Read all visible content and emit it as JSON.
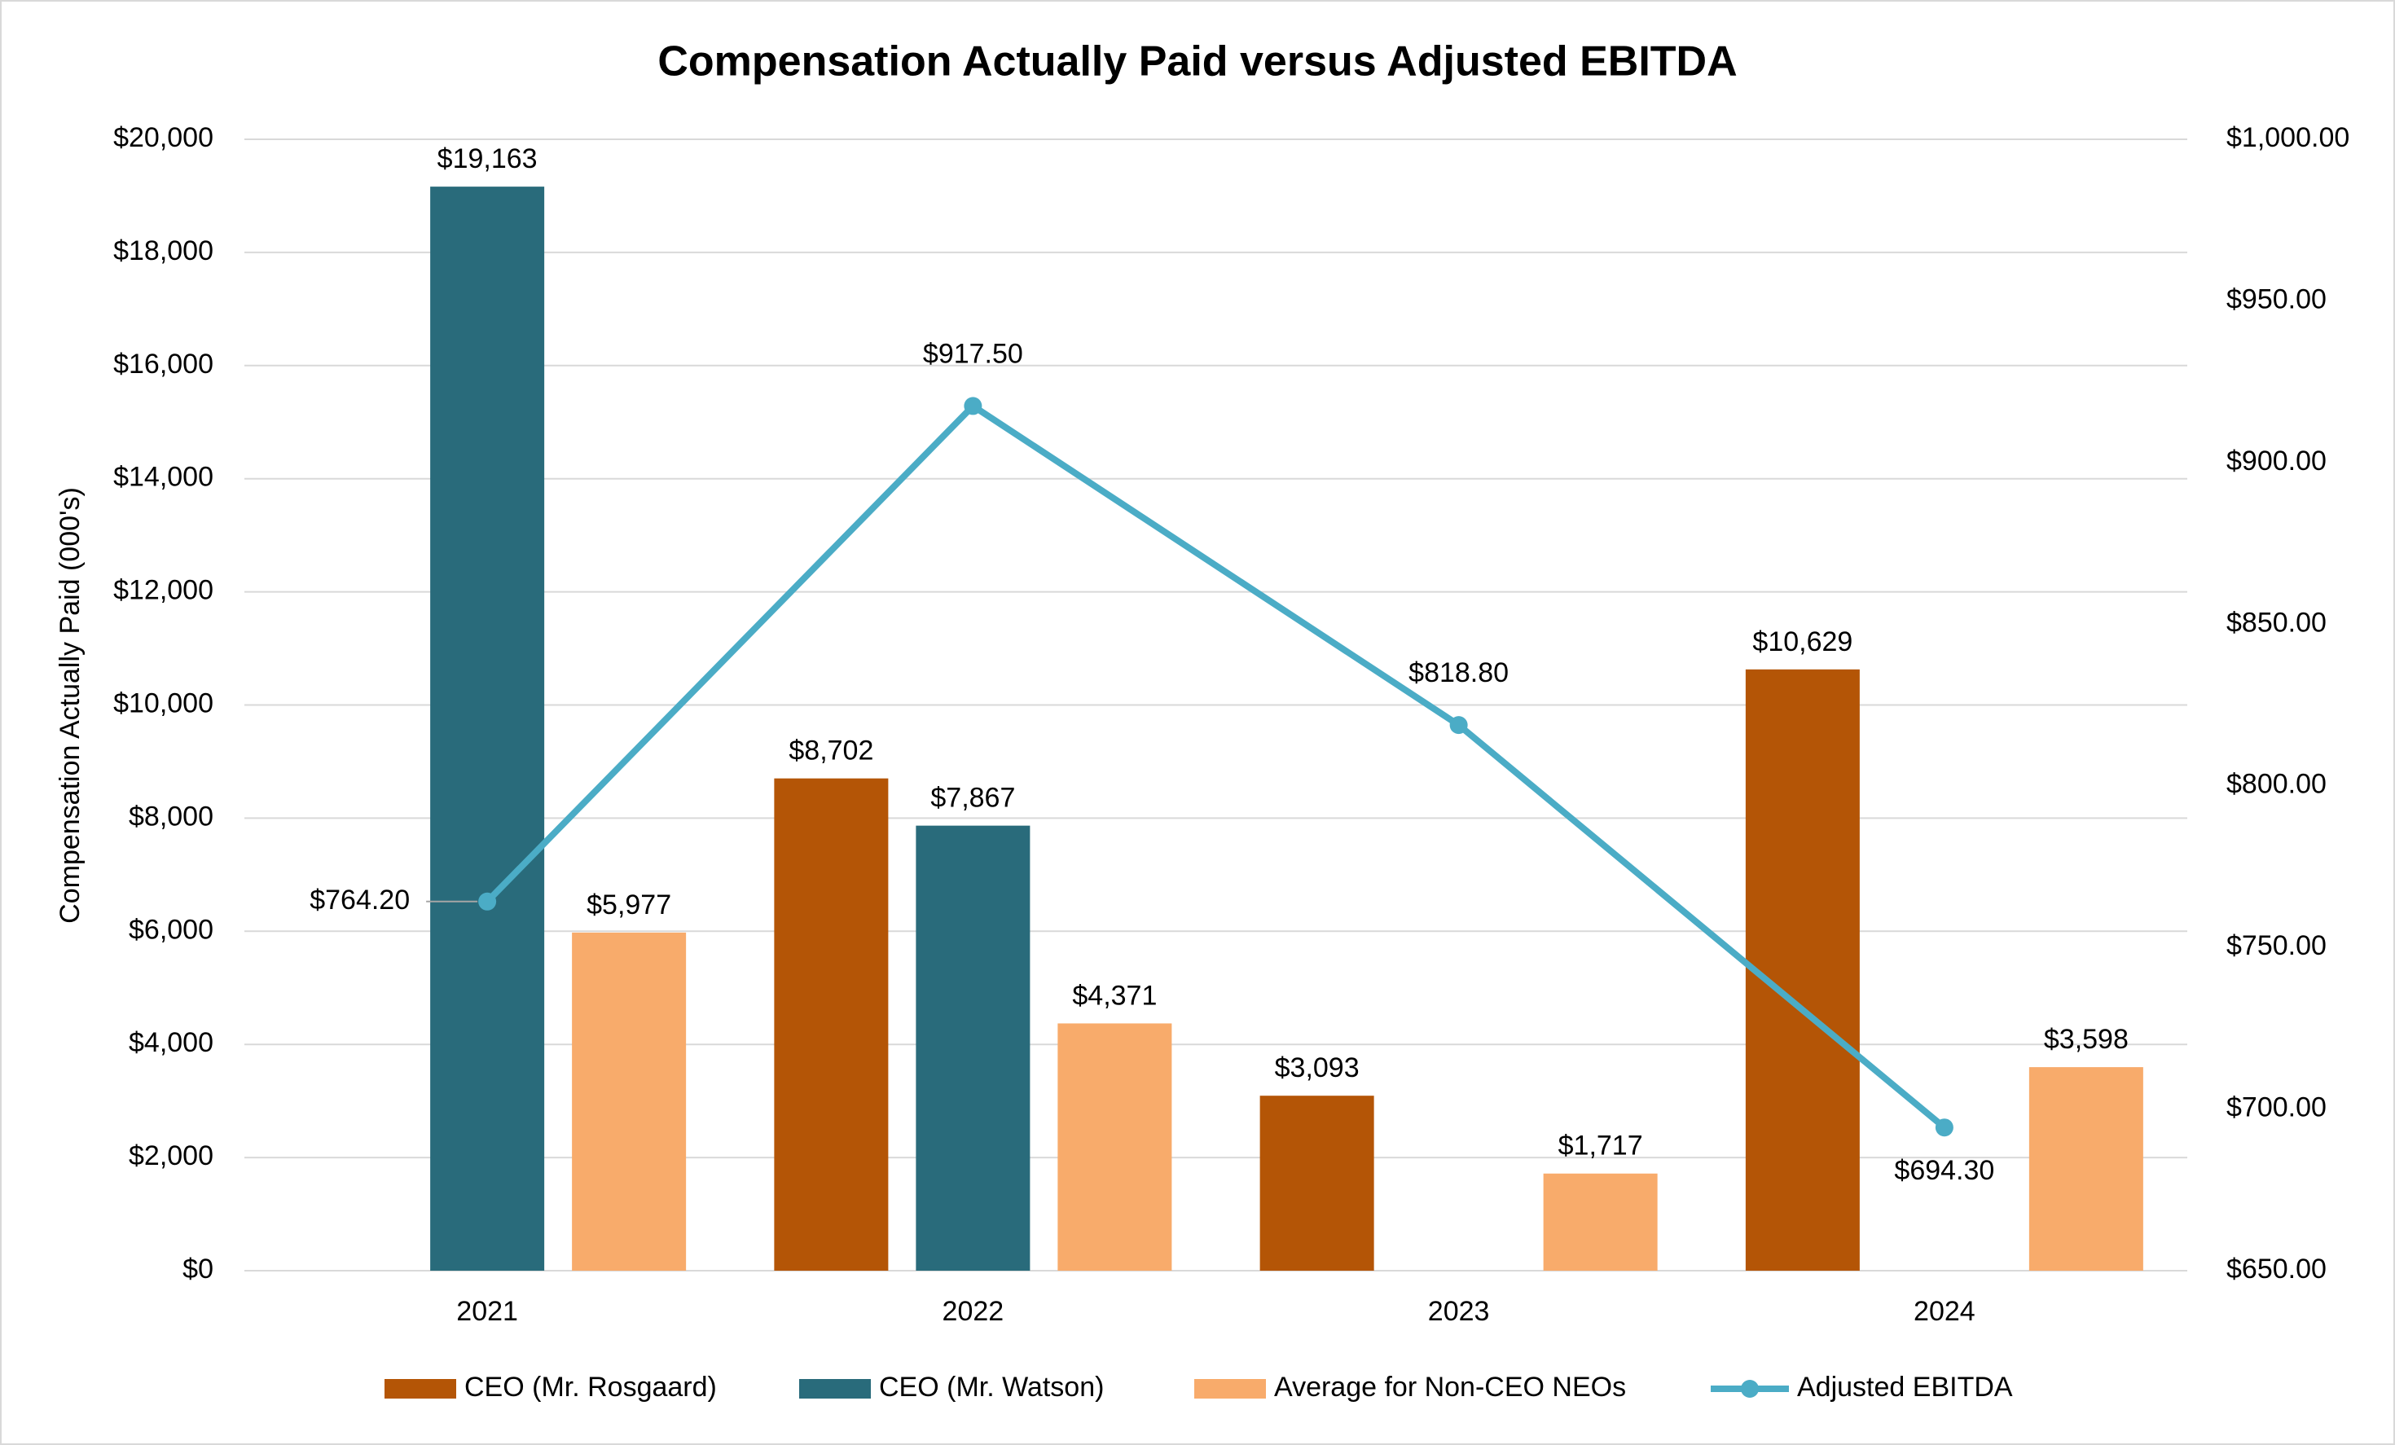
{
  "chart_data": {
    "type": "bar",
    "title": "Compensation Actually Paid versus Adjusted EBITDA",
    "y_label": "Compensation Actually Paid (000's)",
    "categories": [
      "2021",
      "2022",
      "2023",
      "2024"
    ],
    "series": [
      {
        "name": "CEO (Mr. Rosgaard)",
        "color": "#b45506",
        "values": [
          null,
          8702,
          3093,
          10629
        ],
        "value_labels": [
          null,
          "$8,702",
          "$3,093",
          "$10,629"
        ]
      },
      {
        "name": "CEO (Mr. Watson)",
        "color": "#296b7b",
        "values": [
          19163,
          7867,
          null,
          null
        ],
        "value_labels": [
          "$19,163",
          "$7,867",
          null,
          null
        ]
      },
      {
        "name": "Average for Non-CEO NEOs",
        "color": "#f8ab6b",
        "values": [
          5977,
          4371,
          1717,
          3598
        ],
        "value_labels": [
          "$5,977",
          "$4,371",
          "$1,717",
          "$3,598"
        ]
      },
      {
        "name": "Adjusted EBITDA",
        "color": "#4bacc6",
        "type": "line",
        "axis": "y2",
        "values": [
          764.2,
          917.5,
          818.8,
          694.3
        ],
        "value_labels": [
          "$764.20",
          "$917.50",
          "$818.80",
          "$694.30"
        ]
      }
    ],
    "ylim": [
      0,
      20000
    ],
    "yticks": [
      {
        "value": 0,
        "label": "$0"
      },
      {
        "value": 2000,
        "label": "$2,000"
      },
      {
        "value": 4000,
        "label": "$4,000"
      },
      {
        "value": 6000,
        "label": "$6,000"
      },
      {
        "value": 8000,
        "label": "$8,000"
      },
      {
        "value": 10000,
        "label": "$10,000"
      },
      {
        "value": 12000,
        "label": "$12,000"
      },
      {
        "value": 14000,
        "label": "$14,000"
      },
      {
        "value": 16000,
        "label": "$16,000"
      },
      {
        "value": 18000,
        "label": "$18,000"
      },
      {
        "value": 20000,
        "label": "$20,000"
      }
    ],
    "y2lim": [
      650,
      1000
    ],
    "y2ticks": [
      {
        "value": 650,
        "label": "$650.00"
      },
      {
        "value": 700,
        "label": "$700.00"
      },
      {
        "value": 750,
        "label": "$750.00"
      },
      {
        "value": 800,
        "label": "$800.00"
      },
      {
        "value": 850,
        "label": "$850.00"
      },
      {
        "value": 900,
        "label": "$900.00"
      },
      {
        "value": 950,
        "label": "$950.00"
      },
      {
        "value": 1000,
        "label": "$1,000.00"
      }
    ],
    "grid": true,
    "legend": "bottom"
  }
}
